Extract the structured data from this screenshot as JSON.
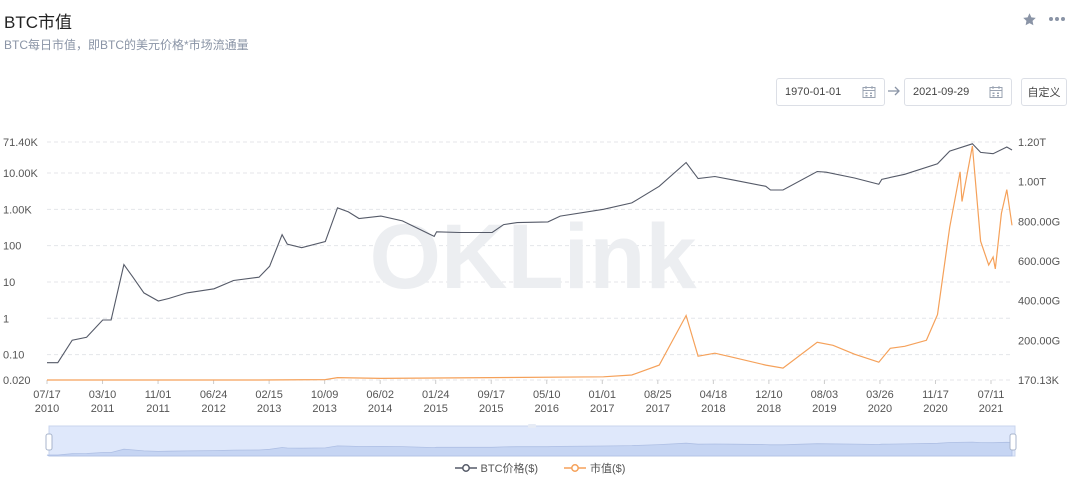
{
  "header": {
    "title": "BTC市值",
    "subtitle": "BTC每日市值，即BTC的美元价格*市场流通量",
    "star_icon": "star-icon",
    "more_icon": "more-dots-icon"
  },
  "date_range": {
    "start": "1970-01-01",
    "end": "2021-09-29",
    "custom_label": "自定义",
    "calendar_icon": "calendar-icon",
    "arrow_icon": "arrow-right-icon"
  },
  "watermark": "OKLink",
  "colors": {
    "price": "#555a68",
    "market_cap": "#f5a15a",
    "grid": "#e4e6ea",
    "slider_fill": "#dfe8fb",
    "slider_border": "#c9d5ee"
  },
  "chart_data": {
    "type": "line",
    "x_tick_labels": [
      [
        "07/17",
        "2010"
      ],
      [
        "03/10",
        "2011"
      ],
      [
        "11/01",
        "2011"
      ],
      [
        "06/24",
        "2012"
      ],
      [
        "02/15",
        "2013"
      ],
      [
        "10/09",
        "2013"
      ],
      [
        "06/02",
        "2014"
      ],
      [
        "01/24",
        "2015"
      ],
      [
        "09/17",
        "2015"
      ],
      [
        "05/10",
        "2016"
      ],
      [
        "01/01",
        "2017"
      ],
      [
        "08/25",
        "2017"
      ],
      [
        "04/18",
        "2018"
      ],
      [
        "12/10",
        "2018"
      ],
      [
        "08/03",
        "2019"
      ],
      [
        "03/26",
        "2020"
      ],
      [
        "11/17",
        "2020"
      ],
      [
        "07/11",
        "2021"
      ]
    ],
    "y_left": {
      "scale": "log",
      "tick_labels": [
        "71.40K",
        "10.00K",
        "1.00K",
        "100",
        "10",
        "1",
        "0.10",
        "0.020"
      ],
      "tick_values": [
        71400,
        10000,
        1000,
        100,
        10,
        1,
        0.1,
        0.02
      ]
    },
    "y_right": {
      "scale": "linear",
      "tick_labels": [
        "1.20T",
        "1.00T",
        "800.00G",
        "600.00G",
        "400.00G",
        "200.00G",
        "170.13K"
      ],
      "tick_values": [
        1200,
        1000,
        800,
        600,
        400,
        200,
        0
      ],
      "unit": "G"
    },
    "series": [
      {
        "name": "BTC价格($)",
        "axis": "left",
        "x": [
          "2010-07-17",
          "2010-09-01",
          "2010-11-01",
          "2011-01-01",
          "2011-03-10",
          "2011-04-15",
          "2011-06-08",
          "2011-07-15",
          "2011-09-01",
          "2011-11-01",
          "2011-12-15",
          "2012-03-01",
          "2012-06-24",
          "2012-09-15",
          "2013-01-01",
          "2013-02-15",
          "2013-04-09",
          "2013-05-01",
          "2013-07-01",
          "2013-10-09",
          "2013-11-30",
          "2014-01-15",
          "2014-03-01",
          "2014-06-02",
          "2014-09-01",
          "2015-01-14",
          "2015-01-24",
          "2015-05-01",
          "2015-09-17",
          "2015-11-04",
          "2016-01-01",
          "2016-05-10",
          "2016-07-01",
          "2017-01-01",
          "2017-05-01",
          "2017-08-25",
          "2017-12-17",
          "2018-02-06",
          "2018-04-18",
          "2018-07-01",
          "2018-11-20",
          "2018-12-10",
          "2019-02-01",
          "2019-06-26",
          "2019-08-03",
          "2019-12-01",
          "2020-03-13",
          "2020-03-26",
          "2020-07-01",
          "2020-11-17",
          "2021-01-08",
          "2021-04-14",
          "2021-05-19",
          "2021-07-11",
          "2021-09-07",
          "2021-09-29"
        ],
        "values": [
          0.06,
          0.06,
          0.25,
          0.3,
          0.9,
          0.9,
          30,
          14,
          5,
          3,
          3.5,
          5,
          6.5,
          11,
          13.5,
          27,
          200,
          110,
          88,
          130,
          1100,
          850,
          560,
          650,
          480,
          180,
          240,
          230,
          230,
          380,
          430,
          450,
          650,
          1000,
          1500,
          4300,
          19500,
          7000,
          8000,
          6500,
          4300,
          3400,
          3400,
          11000,
          10500,
          7300,
          4900,
          6700,
          9200,
          17900,
          40000,
          63500,
          37000,
          34000,
          52000,
          43000
        ]
      },
      {
        "name": "市值($)",
        "axis": "right",
        "x": [
          "2010-07-17",
          "2013-01-01",
          "2013-10-09",
          "2013-11-30",
          "2014-06-02",
          "2017-01-01",
          "2017-05-01",
          "2017-08-25",
          "2017-12-17",
          "2018-02-06",
          "2018-04-18",
          "2018-07-01",
          "2018-11-20",
          "2019-02-01",
          "2019-06-26",
          "2019-09-01",
          "2019-12-01",
          "2020-03-13",
          "2020-05-01",
          "2020-07-01",
          "2020-10-01",
          "2020-11-17",
          "2021-01-08",
          "2021-02-21",
          "2021-03-01",
          "2021-04-14",
          "2021-05-19",
          "2021-06-22",
          "2021-07-11",
          "2021-07-20",
          "2021-08-15",
          "2021-09-07",
          "2021-09-29"
        ],
        "values": [
          0,
          0,
          2,
          12,
          8,
          16,
          25,
          75,
          325,
          120,
          135,
          115,
          75,
          60,
          190,
          175,
          130,
          90,
          160,
          170,
          200,
          330,
          770,
          1050,
          900,
          1180,
          700,
          580,
          620,
          560,
          840,
          960,
          780
        ]
      }
    ]
  }
}
